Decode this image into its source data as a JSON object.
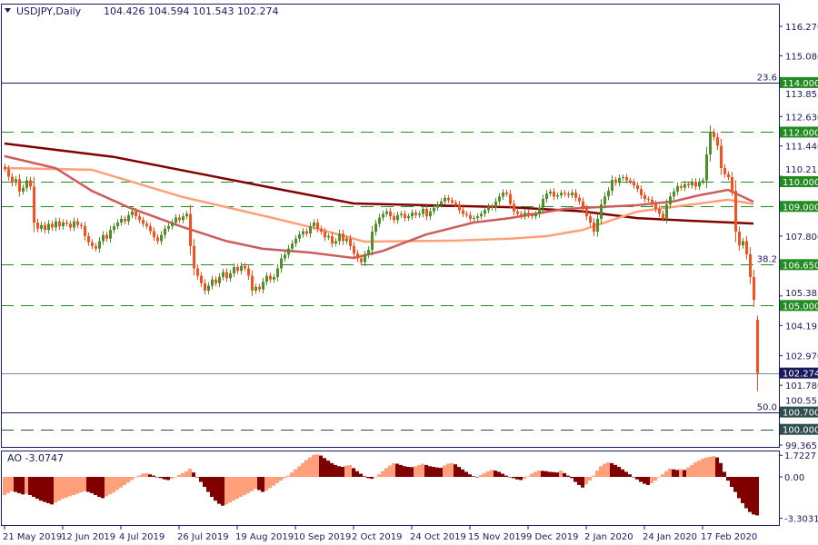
{
  "header": {
    "symbol": "USDJPY,Daily",
    "ohlc": "104.426 104.594 101.543 102.274"
  },
  "ao_label": "AO -3.0747",
  "colors": {
    "bull": "#4f8f2a",
    "bear": "#f4511e",
    "ao_up": "#ffa07a",
    "ao_down": "#800000",
    "frame": "#1a1a6e",
    "level_green": "#228b22",
    "level_slate": "#2f4f4f",
    "price_tag": "#1a1a5e"
  },
  "chart_data": [
    {
      "type": "candlestick",
      "title": "USDJPY,Daily",
      "x_tick_labels": [
        "21 May 2019",
        "12 Jun 2019",
        "4 Jul 2019",
        "26 Jul 2019",
        "19 Aug 2019",
        "10 Sep 2019",
        "2 Oct 2019",
        "24 Oct 2019",
        "15 Nov 2019",
        "9 Dec 2019",
        "2 Jan 2020",
        "24 Jan 2020",
        "17 Feb 2020"
      ],
      "x_tick_every_bars": 16,
      "ylim": [
        99.0,
        117.0
      ],
      "y_tick_labels": [
        "116.270",
        "115.080",
        "113.855",
        "112.630",
        "111.440",
        "110.215",
        "107.800",
        "105.385",
        "104.195",
        "102.970",
        "101.780",
        "100.555",
        "99.365"
      ],
      "closes": [
        110.5,
        110.2,
        109.95,
        110.1,
        109.6,
        109.75,
        110.05,
        109.8,
        108.35,
        108.1,
        108.25,
        108.05,
        108.3,
        108.15,
        108.4,
        108.2,
        108.35,
        108.3,
        108.15,
        108.4,
        108.25,
        108.2,
        107.8,
        107.55,
        107.4,
        107.3,
        107.6,
        107.85,
        107.7,
        108.05,
        108.2,
        108.35,
        108.5,
        108.4,
        108.65,
        108.8,
        108.6,
        108.45,
        108.3,
        108.2,
        108.0,
        107.75,
        107.6,
        107.85,
        108.1,
        108.2,
        108.35,
        108.55,
        108.45,
        108.6,
        108.7,
        107.4,
        106.5,
        106.2,
        105.9,
        105.6,
        105.8,
        106.05,
        105.9,
        106.15,
        106.35,
        106.1,
        106.3,
        106.55,
        106.4,
        106.6,
        106.5,
        106.2,
        105.6,
        105.75,
        105.65,
        105.96,
        106.2,
        106.05,
        106.15,
        106.5,
        106.9,
        107.05,
        107.3,
        107.5,
        107.7,
        107.87,
        108.0,
        107.9,
        108.2,
        108.35,
        108.1,
        107.98,
        107.75,
        107.8,
        107.5,
        107.6,
        107.9,
        107.6,
        107.7,
        107.4,
        107.1,
        106.9,
        106.75,
        107.05,
        107.25,
        107.98,
        108.3,
        108.55,
        108.7,
        108.8,
        108.6,
        108.45,
        108.65,
        108.7,
        108.53,
        108.6,
        108.75,
        108.65,
        108.7,
        108.9,
        108.6,
        108.8,
        108.95,
        109.08,
        109.2,
        109.34,
        109.25,
        109.15,
        109.08,
        108.85,
        108.7,
        108.65,
        108.5,
        108.53,
        108.6,
        108.7,
        108.85,
        109.0,
        108.95,
        109.2,
        109.4,
        109.56,
        109.5,
        109.1,
        108.8,
        108.7,
        108.6,
        108.75,
        108.65,
        108.6,
        108.7,
        108.95,
        109.3,
        109.52,
        109.6,
        109.4,
        109.45,
        109.55,
        109.5,
        109.45,
        109.56,
        109.35,
        109.2,
        108.9,
        108.6,
        108.35,
        107.98,
        108.5,
        109.08,
        109.4,
        109.63,
        110.07,
        109.95,
        110.15,
        110.18,
        110.05,
        110.0,
        109.85,
        109.7,
        109.45,
        109.3,
        109.27,
        109.1,
        108.9,
        108.7,
        108.53,
        109.08,
        109.4,
        109.6,
        109.82,
        109.75,
        109.9,
        109.85,
        110.0,
        109.8,
        110.0,
        110.05,
        111.1,
        112.0,
        111.8,
        111.45,
        110.55,
        110.3,
        110.18,
        109.63,
        107.98,
        107.43,
        107.6,
        107.07,
        106.15,
        105.23,
        102.274
      ],
      "last_bar": {
        "open": 104.426,
        "high": 104.594,
        "low": 101.543,
        "close": 102.274
      },
      "moving_averages": [
        {
          "color": "#800000",
          "points": [
            [
              0,
              111.54
            ],
            [
              30,
              111.0
            ],
            [
              74,
              109.74
            ],
            [
              96,
              109.12
            ],
            [
              139,
              108.97
            ],
            [
              159,
              108.8
            ],
            [
              174,
              108.53
            ],
            [
              189,
              108.42
            ],
            [
              206,
              108.31
            ]
          ]
        },
        {
          "color": "#ffa07a",
          "points": [
            [
              0,
              110.55
            ],
            [
              24,
              110.48
            ],
            [
              49,
              109.38
            ],
            [
              74,
              108.53
            ],
            [
              86,
              108.1
            ],
            [
              99,
              107.58
            ],
            [
              124,
              107.62
            ],
            [
              139,
              107.7
            ],
            [
              149,
              107.8
            ],
            [
              159,
              108.05
            ],
            [
              174,
              108.79
            ],
            [
              189,
              109.08
            ],
            [
              199,
              109.27
            ],
            [
              206,
              109.1
            ]
          ]
        },
        {
          "color": "#cd5c5c",
          "points": [
            [
              0,
              111.03
            ],
            [
              14,
              110.55
            ],
            [
              24,
              109.63
            ],
            [
              34,
              108.97
            ],
            [
              49,
              108.17
            ],
            [
              61,
              107.6
            ],
            [
              71,
              107.29
            ],
            [
              84,
              107.14
            ],
            [
              96,
              106.92
            ],
            [
              104,
              107.2
            ],
            [
              116,
              107.87
            ],
            [
              129,
              108.35
            ],
            [
              139,
              108.53
            ],
            [
              154,
              108.9
            ],
            [
              174,
              109.05
            ],
            [
              184,
              109.2
            ],
            [
              191,
              109.45
            ],
            [
              199,
              109.67
            ],
            [
              206,
              109.19
            ]
          ]
        }
      ],
      "levels": [
        {
          "price": 114.0,
          "label": "114.000",
          "style": "solid",
          "color": "#1a1a6e",
          "tag": "#228b22",
          "fibo": "23.6"
        },
        {
          "price": 112.0,
          "label": "112.000",
          "style": "dashed",
          "color": "#228b22",
          "tag": "#228b22"
        },
        {
          "price": 110.0,
          "label": "110.000",
          "style": "dashed",
          "color": "#228b22",
          "tag": "#228b22"
        },
        {
          "price": 109.0,
          "label": "109.000",
          "style": "dashed",
          "color": "#228b22",
          "tag": "#228b22"
        },
        {
          "price": 106.65,
          "label": "106.650",
          "style": "dashed",
          "color": "#228b22",
          "tag": "#228b22",
          "fibo": "38.2"
        },
        {
          "price": 105.0,
          "label": "105.000",
          "style": "dashed",
          "color": "#228b22",
          "tag": "#228b22"
        },
        {
          "price": 102.274,
          "label": "102.274",
          "style": "solid",
          "color": "#778899",
          "tag": "#1a1a5e"
        },
        {
          "price": 100.7,
          "label": "100.700",
          "style": "solid",
          "color": "#1a1a6e",
          "tag": "#2f4f4f",
          "fibo": "50.0"
        },
        {
          "price": 100.0,
          "label": "100.000",
          "style": "dashed",
          "color": "#2f4f4f",
          "tag": "#2f4f4f"
        }
      ]
    },
    {
      "type": "bar",
      "title": "AO -3.0747",
      "ylim": [
        -3.3031,
        1.7227
      ],
      "y_tick_labels": [
        "1.7227",
        "0.00",
        "-3.3031"
      ],
      "values": [
        -1.45,
        -1.3,
        -1.15,
        -1.2,
        -1.3,
        -1.4,
        -1.35,
        -1.45,
        -1.6,
        -1.75,
        -1.9,
        -2.0,
        -2.1,
        -2.2,
        -2.05,
        -1.9,
        -1.75,
        -1.65,
        -1.55,
        -1.45,
        -1.35,
        -1.25,
        -1.15,
        -1.2,
        -1.3,
        -1.45,
        -1.6,
        -1.7,
        -1.55,
        -1.4,
        -1.25,
        -1.05,
        -0.85,
        -0.65,
        -0.45,
        -0.25,
        -0.05,
        0.1,
        0.25,
        0.3,
        0.2,
        0.1,
        0.0,
        -0.1,
        -0.2,
        -0.25,
        -0.15,
        0.0,
        0.15,
        0.3,
        0.45,
        0.65,
        0.35,
        0.0,
        -0.4,
        -0.8,
        -1.2,
        -1.6,
        -1.9,
        -2.15,
        -2.3,
        -2.2,
        -2.05,
        -1.9,
        -1.75,
        -1.6,
        -1.45,
        -1.3,
        -1.15,
        -0.95,
        -1.05,
        -1.2,
        -1.1,
        -0.9,
        -0.7,
        -0.5,
        -0.3,
        -0.1,
        0.1,
        0.35,
        0.6,
        0.85,
        1.1,
        1.35,
        1.55,
        1.75,
        1.8,
        1.7,
        1.5,
        1.3,
        1.1,
        0.95,
        0.85,
        0.8,
        0.9,
        0.95,
        0.7,
        0.45,
        0.25,
        0.05,
        -0.1,
        -0.15,
        0.0,
        0.2,
        0.45,
        0.7,
        0.9,
        1.1,
        1.05,
        0.95,
        0.85,
        0.8,
        0.78,
        0.85,
        0.95,
        1.05,
        0.95,
        0.85,
        0.8,
        0.75,
        0.72,
        0.9,
        1.05,
        1.1,
        1.0,
        0.8,
        0.6,
        0.4,
        0.2,
        0.05,
        0.0,
        0.15,
        0.3,
        0.45,
        0.55,
        0.5,
        0.4,
        0.25,
        0.1,
        0.0,
        -0.1,
        -0.2,
        -0.25,
        -0.15,
        0.05,
        0.25,
        0.4,
        0.5,
        0.48,
        0.45,
        0.4,
        0.38,
        0.35,
        0.5,
        0.3,
        0.1,
        -0.1,
        -0.4,
        -0.65,
        -0.85,
        -0.6,
        -0.3,
        0.1,
        0.5,
        0.85,
        1.05,
        1.15,
        1.1,
        0.95,
        0.8,
        0.6,
        0.4,
        0.2,
        0.0,
        -0.2,
        -0.4,
        -0.55,
        -0.65,
        -0.5,
        -0.3,
        -0.05,
        0.2,
        0.45,
        0.65,
        0.6,
        0.55,
        0.62,
        0.55,
        0.75,
        0.95,
        1.15,
        1.3,
        1.45,
        1.55,
        1.6,
        1.65,
        1.55,
        1.1,
        0.4,
        -0.3,
        -0.8,
        -1.2,
        -1.7,
        -2.1,
        -2.5,
        -2.8,
        -3.0,
        -3.0747
      ]
    }
  ]
}
